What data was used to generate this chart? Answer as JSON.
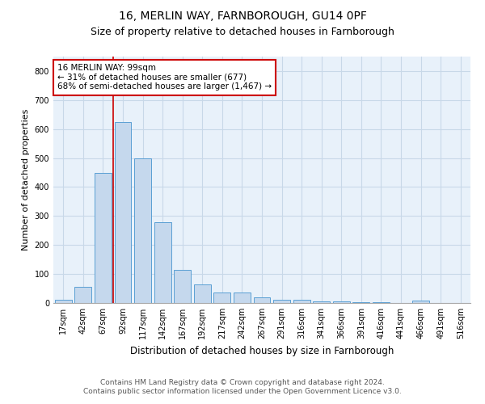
{
  "title1": "16, MERLIN WAY, FARNBOROUGH, GU14 0PF",
  "title2": "Size of property relative to detached houses in Farnborough",
  "xlabel": "Distribution of detached houses by size in Farnborough",
  "ylabel": "Number of detached properties",
  "categories": [
    "17sqm",
    "42sqm",
    "67sqm",
    "92sqm",
    "117sqm",
    "142sqm",
    "167sqm",
    "192sqm",
    "217sqm",
    "242sqm",
    "267sqm",
    "291sqm",
    "316sqm",
    "341sqm",
    "366sqm",
    "391sqm",
    "416sqm",
    "441sqm",
    "466sqm",
    "491sqm",
    "516sqm"
  ],
  "values": [
    10,
    55,
    448,
    625,
    500,
    280,
    115,
    65,
    37,
    37,
    20,
    10,
    10,
    5,
    5,
    3,
    3,
    0,
    8,
    0,
    0
  ],
  "bar_color": "#c5d8ed",
  "bar_edge_color": "#5a9fd4",
  "vline_x_index": 3,
  "vline_color": "#cc0000",
  "annotation_text": "16 MERLIN WAY: 99sqm\n← 31% of detached houses are smaller (677)\n68% of semi-detached houses are larger (1,467) →",
  "annotation_box_color": "#ffffff",
  "annotation_box_edge": "#cc0000",
  "ylim": [
    0,
    850
  ],
  "yticks": [
    0,
    100,
    200,
    300,
    400,
    500,
    600,
    700,
    800
  ],
  "grid_color": "#c8d8e8",
  "background_color": "#e8f1fa",
  "footer1": "Contains HM Land Registry data © Crown copyright and database right 2024.",
  "footer2": "Contains public sector information licensed under the Open Government Licence v3.0.",
  "title1_fontsize": 10,
  "title2_fontsize": 9,
  "xlabel_fontsize": 8.5,
  "ylabel_fontsize": 8,
  "tick_fontsize": 7,
  "footer_fontsize": 6.5,
  "annotation_fontsize": 7.5
}
